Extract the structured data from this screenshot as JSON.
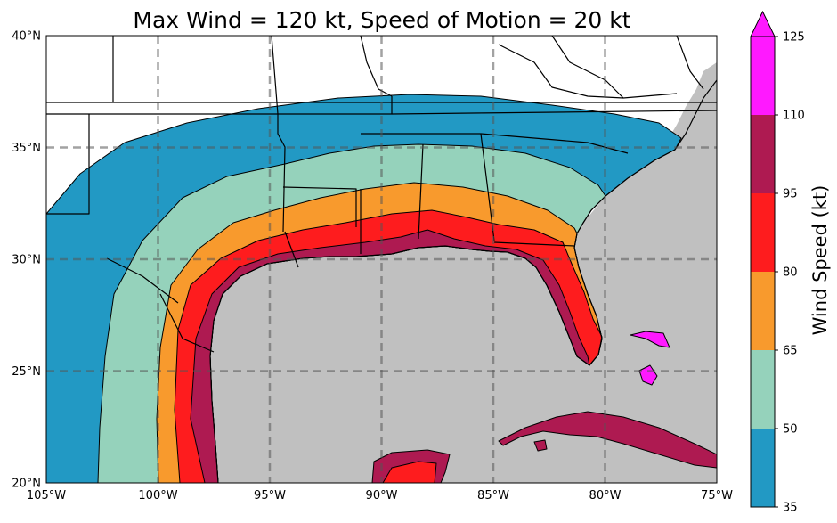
{
  "chart_data": {
    "type": "map",
    "title": "Max Wind = 120 kt, Speed of Motion = 20 kt",
    "map": {
      "lon_range": [
        -105,
        -75
      ],
      "lat_range": [
        20,
        40
      ],
      "x_ticks": [
        {
          "value": -105,
          "label": "105°W"
        },
        {
          "value": -100,
          "label": "100°W"
        },
        {
          "value": -95,
          "label": "95°W"
        },
        {
          "value": -90,
          "label": "90°W"
        },
        {
          "value": -85,
          "label": "85°W"
        },
        {
          "value": -80,
          "label": "80°W"
        },
        {
          "value": -75,
          "label": "75°W"
        }
      ],
      "y_ticks": [
        {
          "value": 20,
          "label": "20°N"
        },
        {
          "value": 25,
          "label": "25°N"
        },
        {
          "value": 30,
          "label": "30°N"
        },
        {
          "value": 35,
          "label": "35°N"
        },
        {
          "value": 40,
          "label": "40°N"
        }
      ],
      "gridlines": true,
      "ocean_color": "#c0c0c0",
      "land_color": "#ffffff"
    },
    "colorbar": {
      "label": "Wind Speed (kt)",
      "ticks": [
        35,
        50,
        65,
        80,
        95,
        110,
        125
      ],
      "extend": "max",
      "bins": [
        {
          "from": 35,
          "to": 50,
          "color": "#2299c4"
        },
        {
          "from": 50,
          "to": 65,
          "color": "#95d2bb"
        },
        {
          "from": 65,
          "to": 80,
          "color": "#f89a2d"
        },
        {
          "from": 80,
          "to": 95,
          "color": "#fe1c1e"
        },
        {
          "from": 95,
          "to": 110,
          "color": "#ae1a51"
        },
        {
          "from": 110,
          "to": 125,
          "color": "#ff19ff"
        }
      ]
    }
  }
}
